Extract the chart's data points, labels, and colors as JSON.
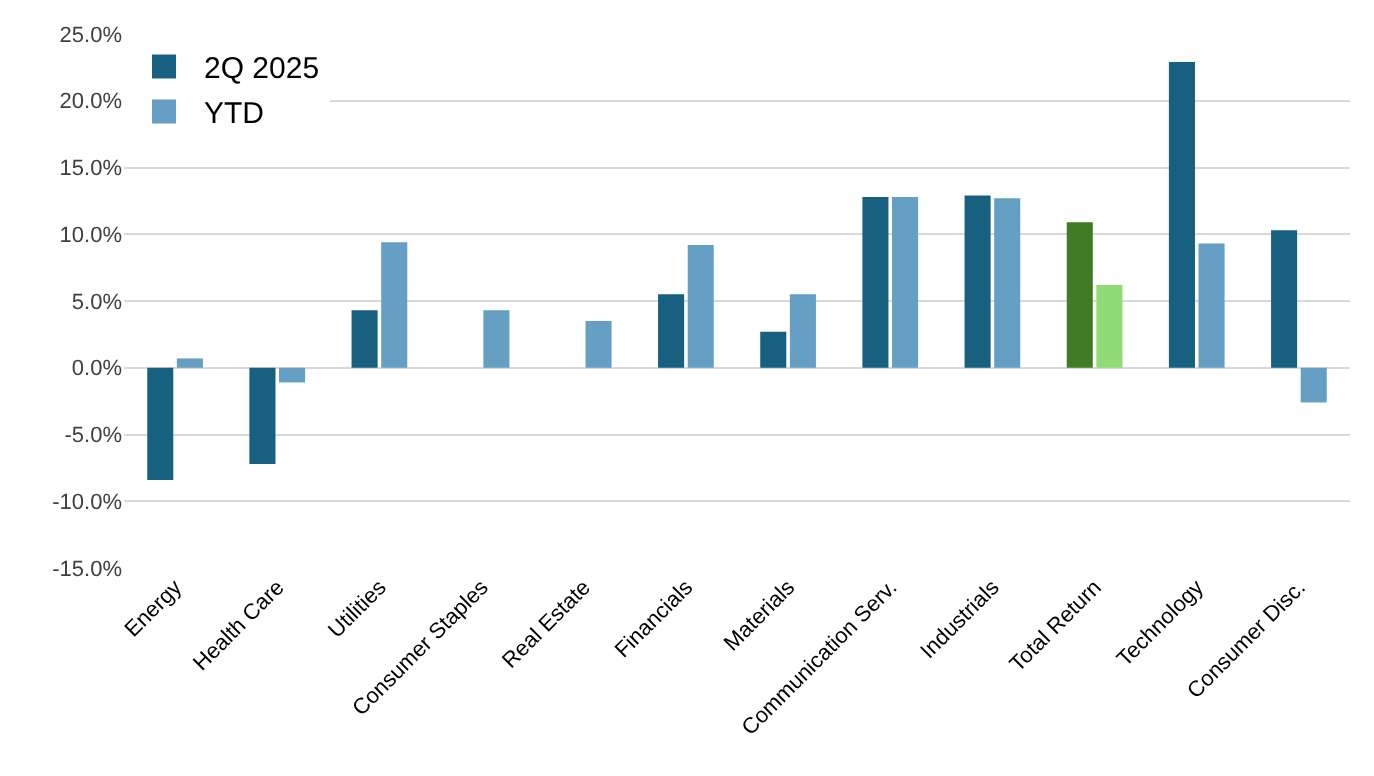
{
  "chart_data": {
    "type": "bar",
    "categories": [
      "Energy",
      "Health Care",
      "Utilities",
      "Consumer Staples",
      "Real Estate",
      "Financials",
      "Materials",
      "Communication Serv.",
      "Industrials",
      "Total Return",
      "Technology",
      "Consumer Disc."
    ],
    "series": [
      {
        "name": "2Q 2025",
        "color": "#17607f",
        "colors": [
          null,
          null,
          null,
          null,
          null,
          null,
          null,
          null,
          null,
          "#3f7c23",
          null,
          null
        ],
        "values": [
          -8.4,
          -7.2,
          4.3,
          null,
          null,
          5.5,
          2.7,
          12.8,
          12.9,
          10.9,
          22.9,
          10.3
        ]
      },
      {
        "name": "YTD",
        "color": "#659fc4",
        "colors": [
          null,
          null,
          null,
          null,
          null,
          null,
          null,
          null,
          null,
          "#91db74",
          null,
          null
        ],
        "values": [
          0.7,
          -1.1,
          9.4,
          4.3,
          3.5,
          9.2,
          5.5,
          12.8,
          12.7,
          6.2,
          9.3,
          -2.6
        ]
      }
    ],
    "ylim": [
      -15,
      25
    ],
    "yticks": [
      {
        "value": -15,
        "label": "-15.0%"
      },
      {
        "value": -10,
        "label": "-10.0%"
      },
      {
        "value": -5,
        "label": "-5.0%"
      },
      {
        "value": 0,
        "label": "0.0%"
      },
      {
        "value": 5,
        "label": "5.0%"
      },
      {
        "value": 10,
        "label": "10.0%"
      },
      {
        "value": 15,
        "label": "15.0%"
      },
      {
        "value": 20,
        "label": "20.0%"
      },
      {
        "value": 25,
        "label": "25.0%"
      }
    ],
    "grid": "y",
    "legend": "top left"
  }
}
